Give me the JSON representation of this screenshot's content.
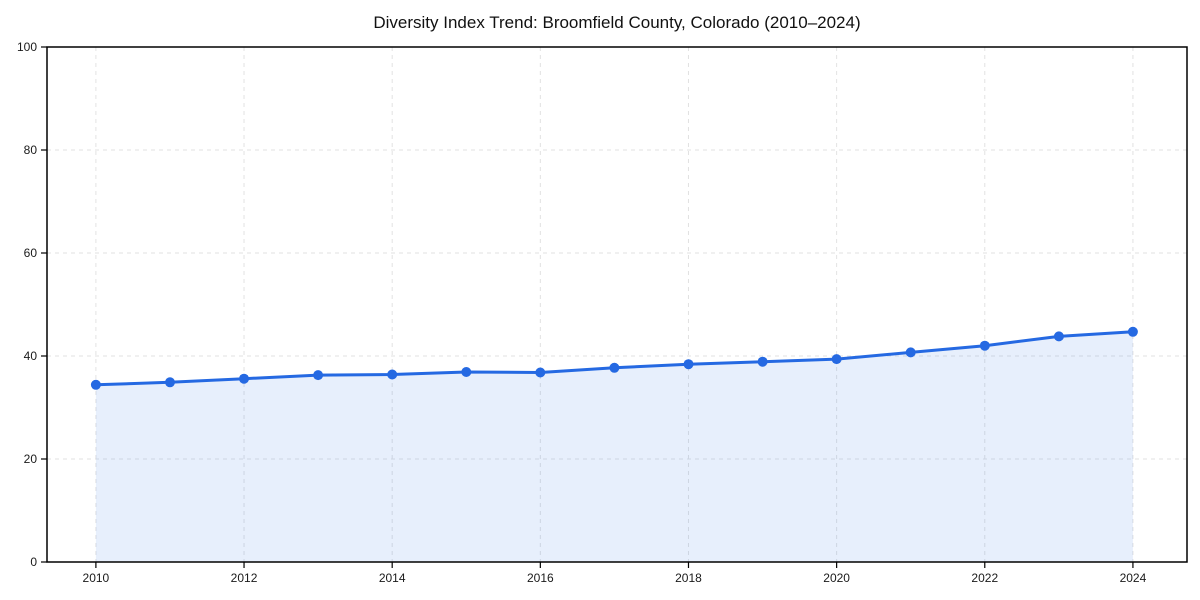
{
  "figure": {
    "background": "#ffffff"
  },
  "chart_data": {
    "type": "area",
    "title": "Diversity Index Trend: Broomfield County, Colorado (2010–2024)",
    "x": [
      2010,
      2011,
      2012,
      2013,
      2014,
      2015,
      2016,
      2017,
      2018,
      2019,
      2020,
      2021,
      2022,
      2023,
      2024
    ],
    "values": [
      34.4,
      34.9,
      35.6,
      36.3,
      36.4,
      36.9,
      36.8,
      37.7,
      38.4,
      38.9,
      39.4,
      40.7,
      42.0,
      43.8,
      44.7
    ],
    "xlabel": "",
    "ylabel": "",
    "xlim": [
      2009.34,
      2024.73
    ],
    "ylim": [
      0,
      100
    ],
    "xticks": [
      2010,
      2012,
      2014,
      2016,
      2018,
      2020,
      2022,
      2024
    ],
    "yticks": [
      0,
      20,
      40,
      60,
      80,
      100
    ],
    "grid": true,
    "grid_style": "dashed",
    "legend": "none",
    "marker": "circle",
    "colors": {
      "line": "#2569E2",
      "marker": "#2569E2",
      "area_fill": "#2569E2",
      "area_opacity": 0.11,
      "gridline": "#E2E2E2",
      "axis": "#000000",
      "tick_label": "#1A1A1A",
      "title": "#111111"
    }
  }
}
